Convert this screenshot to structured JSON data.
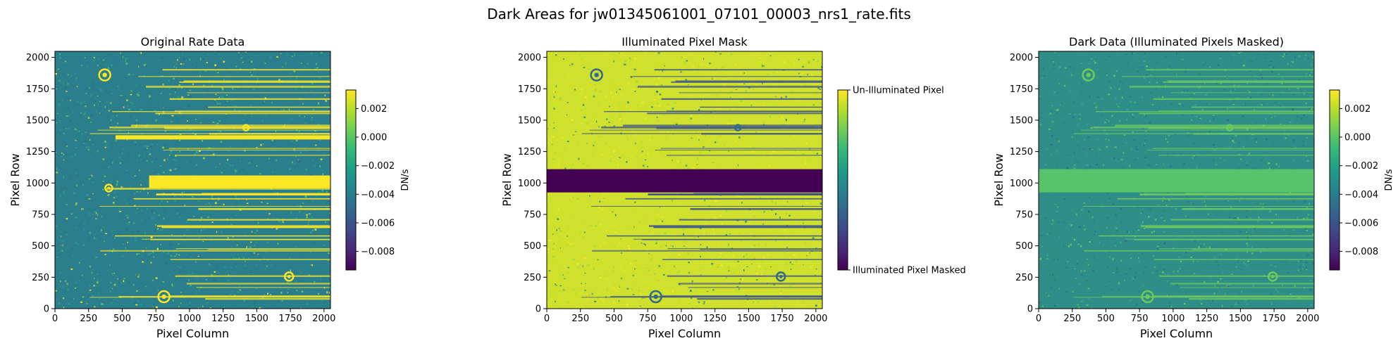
{
  "figure": {
    "suptitle": "Dark Areas for jw01345061001_07101_00003_nrs1_rate.fits"
  },
  "colors": {
    "viridis": [
      "#440154",
      "#482878",
      "#3e4989",
      "#31688e",
      "#26828e",
      "#1f9e89",
      "#35b779",
      "#6ece58",
      "#b5de2b",
      "#fde725"
    ],
    "mask_band_rate": "#440154",
    "mask_band_dark": "#57c36b",
    "streak_rate": "#fde725",
    "streak_mask": "#3b518b"
  },
  "chart_data": [
    {
      "type": "heatmap",
      "title": "Original Rate Data",
      "xlabel": "Pixel Column",
      "ylabel": "Pixel Row",
      "xlim": [
        0,
        2048
      ],
      "ylim": [
        0,
        2048
      ],
      "xticks": [
        0,
        250,
        500,
        750,
        1000,
        1250,
        1500,
        1750,
        2000
      ],
      "yticks": [
        0,
        250,
        500,
        750,
        1000,
        1250,
        1500,
        1750,
        2000
      ],
      "xtick_labels": [
        "0",
        "250",
        "500",
        "750",
        "1000",
        "1250",
        "1500",
        "1750",
        "2000"
      ],
      "ytick_labels": [
        "0",
        "250",
        "500",
        "750",
        "1000",
        "1250",
        "1500",
        "1750",
        "2000"
      ],
      "colorbar": {
        "label": "DN/s",
        "range": [
          -0.0093,
          0.0033
        ],
        "ticks": [
          0.002,
          0.0,
          -0.002,
          -0.004,
          -0.006,
          -0.008
        ],
        "tick_labels": [
          "0.002",
          "0.000",
          "−0.002",
          "−0.004",
          "−0.006",
          "−0.008"
        ]
      },
      "colormap": "viridis",
      "masked_band_rows": null
    },
    {
      "type": "heatmap",
      "title": "Illuminated Pixel Mask",
      "xlabel": "Pixel Column",
      "ylabel": "Pixel Row",
      "xlim": [
        0,
        2048
      ],
      "ylim": [
        0,
        2048
      ],
      "xticks": [
        0,
        250,
        500,
        750,
        1000,
        1250,
        1500,
        1750,
        2000
      ],
      "yticks": [
        0,
        250,
        500,
        750,
        1000,
        1250,
        1500,
        1750,
        2000
      ],
      "xtick_labels": [
        "0",
        "250",
        "500",
        "750",
        "1000",
        "1250",
        "1500",
        "1750",
        "2000"
      ],
      "ytick_labels": [
        "0",
        "250",
        "500",
        "750",
        "1000",
        "1250",
        "1500",
        "1750",
        "2000"
      ],
      "colorbar": {
        "label": "",
        "range": [
          0,
          1
        ],
        "ticks": [
          1,
          0
        ],
        "tick_labels": [
          "Un-Illuminated Pixel",
          "Illuminated Pixel Masked"
        ]
      },
      "colormap": "viridis",
      "masked_band_rows": [
        925,
        1110
      ]
    },
    {
      "type": "heatmap",
      "title": "Dark Data (Illuminated Pixels Masked)",
      "xlabel": "Pixel Column",
      "ylabel": "Pixel Row",
      "xlim": [
        0,
        2048
      ],
      "ylim": [
        0,
        2048
      ],
      "xticks": [
        0,
        250,
        500,
        750,
        1000,
        1250,
        1500,
        1750,
        2000
      ],
      "yticks": [
        0,
        250,
        500,
        750,
        1000,
        1250,
        1500,
        1750,
        2000
      ],
      "xtick_labels": [
        "0",
        "250",
        "500",
        "750",
        "1000",
        "1250",
        "1500",
        "1750",
        "2000"
      ],
      "ytick_labels": [
        "0",
        "250",
        "500",
        "750",
        "1000",
        "1250",
        "1500",
        "1750",
        "2000"
      ],
      "colorbar": {
        "label": "DN/s",
        "range": [
          -0.0093,
          0.0033
        ],
        "ticks": [
          0.002,
          0.0,
          -0.002,
          -0.004,
          -0.006,
          -0.008
        ],
        "tick_labels": [
          "0.002",
          "0.000",
          "−0.002",
          "−0.004",
          "−0.006",
          "−0.008"
        ]
      },
      "colormap": "viridis",
      "masked_band_rows": [
        925,
        1110
      ]
    }
  ]
}
